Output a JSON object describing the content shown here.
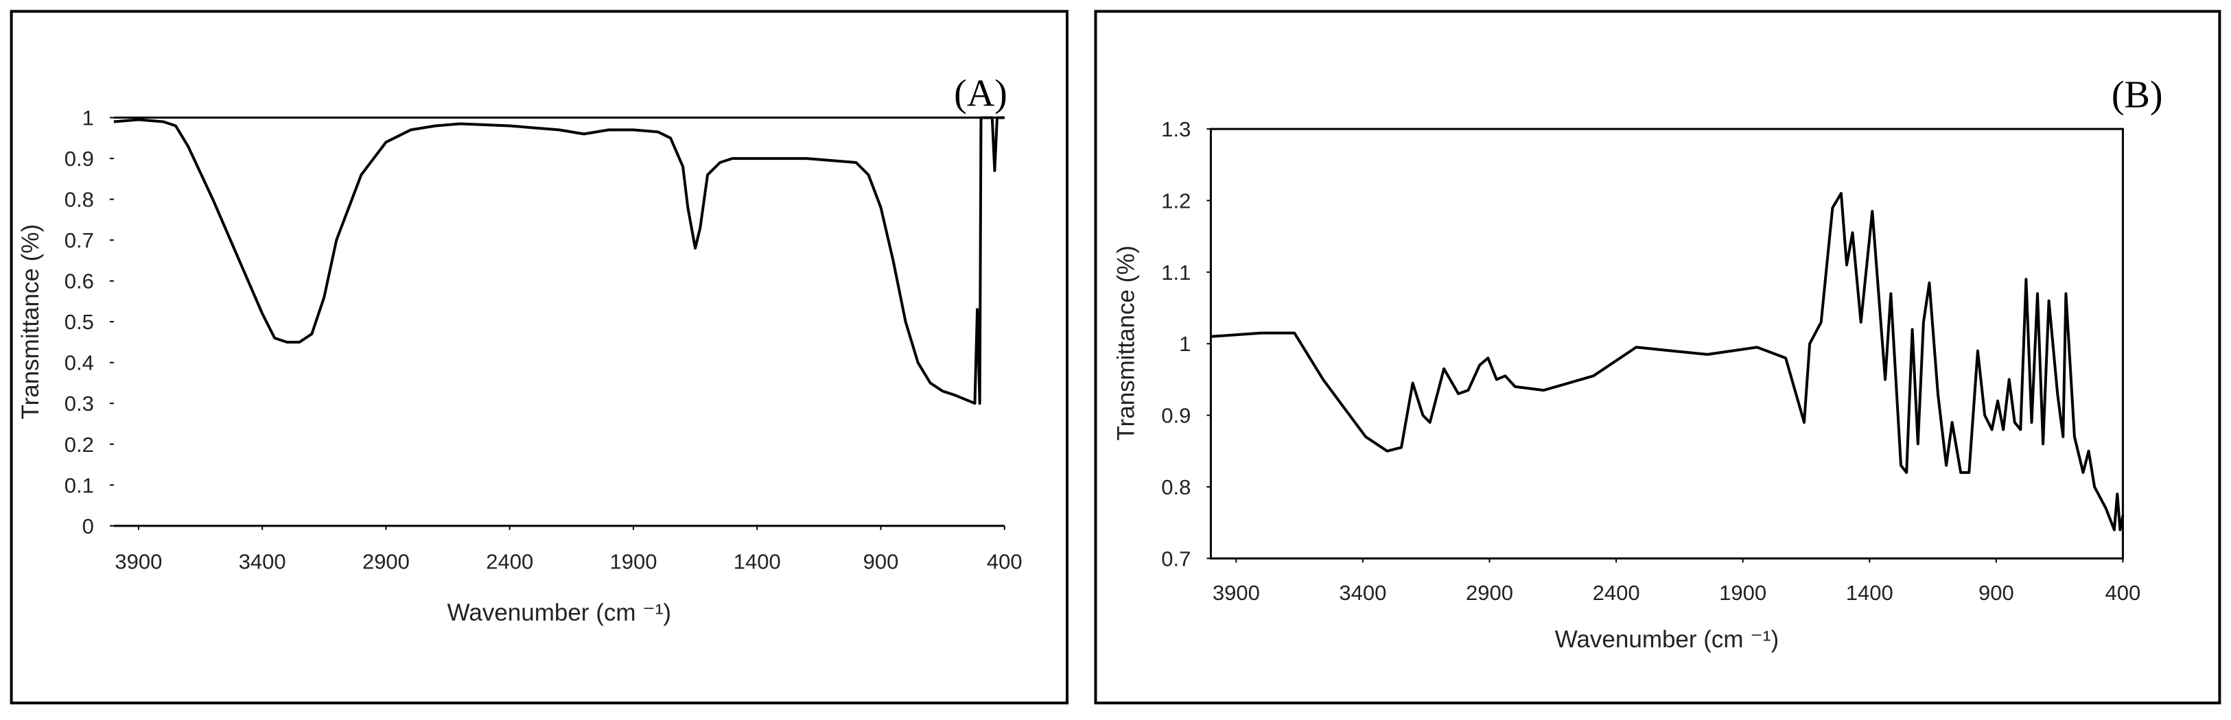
{
  "chart_data": [
    {
      "type": "line",
      "annotation": "(A)",
      "xlabel": "Wavenumber (cm ⁻¹)",
      "ylabel": "Transmittance (%)",
      "color": "#000000",
      "xlim": [
        4000,
        400
      ],
      "ylim": [
        0,
        1
      ],
      "xticks": [
        3900,
        3400,
        2900,
        2400,
        1900,
        1400,
        900,
        400
      ],
      "yticks": [
        0,
        0.1,
        0.2,
        0.3,
        0.4,
        0.5,
        0.6,
        0.7,
        0.8,
        0.9,
        1
      ],
      "x": [
        4000,
        3900,
        3800,
        3750,
        3700,
        3600,
        3500,
        3400,
        3350,
        3300,
        3250,
        3200,
        3150,
        3100,
        3000,
        2900,
        2800,
        2700,
        2600,
        2400,
        2200,
        2100,
        2000,
        1900,
        1800,
        1750,
        1700,
        1680,
        1650,
        1630,
        1600,
        1550,
        1500,
        1400,
        1200,
        1000,
        950,
        900,
        850,
        800,
        750,
        700,
        650,
        600,
        520,
        510,
        500,
        495,
        480,
        450,
        440,
        430,
        400
      ],
      "values": [
        0.99,
        0.995,
        0.99,
        0.98,
        0.93,
        0.8,
        0.66,
        0.52,
        0.46,
        0.45,
        0.45,
        0.47,
        0.56,
        0.7,
        0.86,
        0.94,
        0.97,
        0.98,
        0.985,
        0.98,
        0.97,
        0.96,
        0.97,
        0.97,
        0.965,
        0.95,
        0.88,
        0.78,
        0.68,
        0.73,
        0.86,
        0.89,
        0.9,
        0.9,
        0.9,
        0.89,
        0.86,
        0.78,
        0.65,
        0.5,
        0.4,
        0.35,
        0.33,
        0.32,
        0.3,
        0.53,
        0.3,
        1,
        1,
        1,
        0.87,
        1,
        1
      ]
    },
    {
      "type": "line",
      "annotation": "(B)",
      "xlabel": "Wavenumber (cm ⁻¹)",
      "ylabel": "Transmittance (%)",
      "color": "#000000",
      "xlim": [
        4000,
        400
      ],
      "ylim": [
        0.7,
        1.3
      ],
      "xticks": [
        3900,
        3400,
        2900,
        2400,
        1900,
        1400,
        900,
        400
      ],
      "yticks": [
        0.7,
        0.8,
        0.9,
        1,
        1.1,
        1.2,
        1.3
      ],
      "x": [
        4000,
        3800,
        3670,
        3557,
        3389,
        3304,
        3248,
        3203,
        3163,
        3135,
        3080,
        3023,
        2984,
        2939,
        2906,
        2872,
        2838,
        2799,
        2686,
        2490,
        2321,
        2040,
        1844,
        1731,
        1658,
        1636,
        1591,
        1546,
        1512,
        1490,
        1467,
        1434,
        1389,
        1338,
        1316,
        1276,
        1254,
        1231,
        1209,
        1187,
        1164,
        1130,
        1097,
        1074,
        1040,
        1007,
        973,
        945,
        917,
        894,
        872,
        849,
        827,
        804,
        782,
        760,
        737,
        715,
        692,
        658,
        636,
        625,
        591,
        557,
        535,
        512,
        467,
        434,
        422,
        411,
        400
      ],
      "values": [
        1.01,
        1.015,
        1.015,
        0.95,
        0.87,
        0.85,
        0.855,
        0.945,
        0.9,
        0.89,
        0.965,
        0.93,
        0.935,
        0.97,
        0.98,
        0.95,
        0.955,
        0.94,
        0.935,
        0.955,
        0.995,
        0.985,
        0.995,
        0.98,
        0.89,
        1.0,
        1.03,
        1.19,
        1.21,
        1.11,
        1.155,
        1.03,
        1.185,
        0.95,
        1.07,
        0.83,
        0.82,
        1.02,
        0.86,
        1.03,
        1.085,
        0.93,
        0.83,
        0.89,
        0.82,
        0.82,
        0.99,
        0.9,
        0.88,
        0.92,
        0.88,
        0.95,
        0.89,
        0.88,
        1.09,
        0.89,
        1.07,
        0.86,
        1.06,
        0.93,
        0.87,
        1.07,
        0.87,
        0.82,
        0.85,
        0.8,
        0.77,
        0.74,
        0.79,
        0.74,
        0.76
      ]
    }
  ]
}
